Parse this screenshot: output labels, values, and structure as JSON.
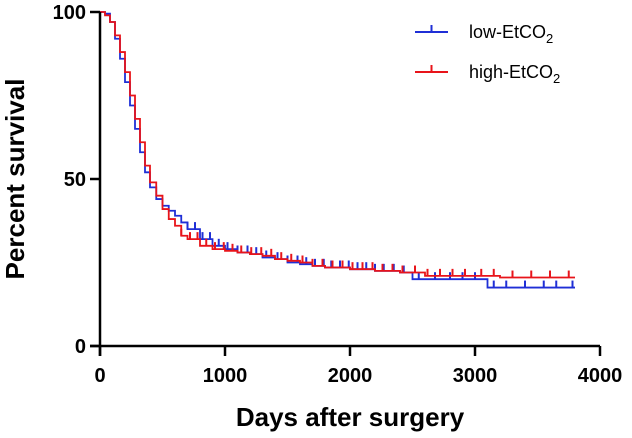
{
  "chart_data": {
    "type": "line",
    "subtype": "kaplan-meier step",
    "title": "",
    "xlabel": "Days after surgery",
    "ylabel": "Percent survival",
    "xlim": [
      0,
      4000
    ],
    "ylim": [
      0,
      100
    ],
    "xticks": [
      "0",
      "1000",
      "2000",
      "3000",
      "4000"
    ],
    "yticks": [
      "0",
      "50",
      "100"
    ],
    "grid": false,
    "legend_position": "top-right",
    "series": [
      {
        "name": "low-EtCO",
        "name_sub": "2",
        "color": "#1f2fd6",
        "points": [
          [
            0,
            100
          ],
          [
            40,
            99.5
          ],
          [
            80,
            97
          ],
          [
            120,
            92
          ],
          [
            160,
            86
          ],
          [
            200,
            79
          ],
          [
            240,
            72
          ],
          [
            280,
            65
          ],
          [
            320,
            58
          ],
          [
            360,
            52
          ],
          [
            400,
            47.5
          ],
          [
            450,
            44
          ],
          [
            500,
            42
          ],
          [
            550,
            40.5
          ],
          [
            600,
            39
          ],
          [
            650,
            37
          ],
          [
            700,
            35
          ],
          [
            800,
            32
          ],
          [
            900,
            30
          ],
          [
            1000,
            29
          ],
          [
            1100,
            28
          ],
          [
            1200,
            27.5
          ],
          [
            1300,
            26.5
          ],
          [
            1400,
            26
          ],
          [
            1500,
            25
          ],
          [
            1600,
            24.5
          ],
          [
            1700,
            24
          ],
          [
            1800,
            23.5
          ],
          [
            2000,
            23
          ],
          [
            2200,
            22.5
          ],
          [
            2400,
            22
          ],
          [
            2500,
            20
          ],
          [
            2800,
            20
          ],
          [
            3000,
            20
          ],
          [
            3100,
            17.5
          ],
          [
            3800,
            17.5
          ]
        ],
        "censored": [
          700,
          760,
          820,
          880,
          950,
          1020,
          1100,
          1180,
          1250,
          1330,
          1420,
          1500,
          1580,
          1650,
          1720,
          1790,
          1850,
          1920,
          1990,
          2060,
          2130,
          2200,
          2270,
          2350,
          2430,
          2550,
          2680,
          2800,
          2900,
          3000,
          3150,
          3250,
          3400,
          3550,
          3650,
          3780
        ]
      },
      {
        "name": "high-EtCO",
        "name_sub": "2",
        "color": "#e8141a",
        "points": [
          [
            0,
            100
          ],
          [
            40,
            99
          ],
          [
            80,
            97
          ],
          [
            120,
            93
          ],
          [
            160,
            88
          ],
          [
            200,
            82
          ],
          [
            240,
            75
          ],
          [
            280,
            68
          ],
          [
            320,
            61
          ],
          [
            360,
            54
          ],
          [
            400,
            49
          ],
          [
            450,
            45
          ],
          [
            500,
            41
          ],
          [
            550,
            38
          ],
          [
            600,
            36
          ],
          [
            650,
            33
          ],
          [
            700,
            32
          ],
          [
            800,
            30
          ],
          [
            900,
            29
          ],
          [
            1000,
            28.5
          ],
          [
            1100,
            28
          ],
          [
            1200,
            27.5
          ],
          [
            1300,
            27
          ],
          [
            1400,
            26
          ],
          [
            1500,
            25.5
          ],
          [
            1600,
            25
          ],
          [
            1700,
            24
          ],
          [
            1800,
            23.5
          ],
          [
            2000,
            23
          ],
          [
            2200,
            22.5
          ],
          [
            2400,
            22
          ],
          [
            2600,
            21
          ],
          [
            3000,
            21
          ],
          [
            3200,
            20.5
          ],
          [
            3800,
            20.5
          ]
        ],
        "censored": [
          650,
          720,
          780,
          850,
          920,
          990,
          1060,
          1130,
          1210,
          1290,
          1370,
          1450,
          1530,
          1620,
          1700,
          1780,
          1860,
          1940,
          2020,
          2100,
          2180,
          2260,
          2340,
          2420,
          2520,
          2620,
          2720,
          2820,
          2920,
          3050,
          3150,
          3300,
          3450,
          3600,
          3750
        ]
      }
    ]
  }
}
